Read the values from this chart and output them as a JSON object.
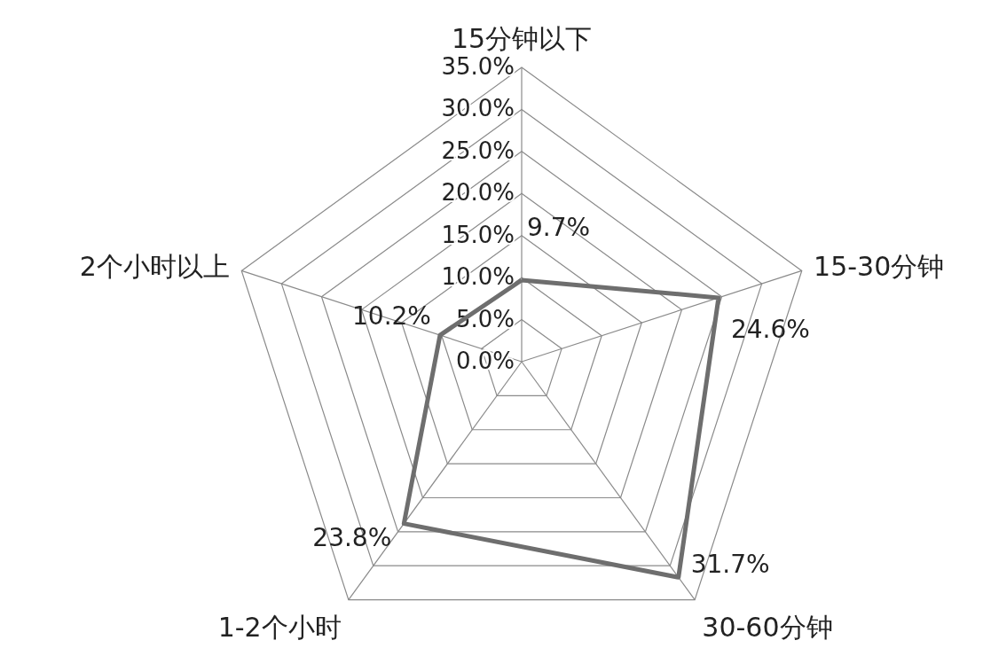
{
  "chart_data": {
    "type": "radar",
    "categories": [
      "15分钟以下",
      "15-30分钟",
      "30-60分钟",
      "1-2个小时",
      "2个小时以上"
    ],
    "series": [
      {
        "color": "#6e6e6e",
        "values": [
          9.7,
          24.6,
          31.7,
          23.8,
          10.2
        ],
        "value_labels": [
          "9.7%",
          "24.6%",
          "31.7%",
          "23.8%",
          "10.2%"
        ]
      }
    ],
    "ylim": [
      0,
      35
    ],
    "yticks": [
      {
        "value": 0,
        "label": "0.0%"
      },
      {
        "value": 5,
        "label": "5.0%"
      },
      {
        "value": 10,
        "label": "10.0%"
      },
      {
        "value": 15,
        "label": "15.0%"
      },
      {
        "value": 20,
        "label": "20.0%"
      },
      {
        "value": 25,
        "label": "25.0%"
      },
      {
        "value": 30,
        "label": "30.0%"
      },
      {
        "value": 35,
        "label": "35.0%"
      }
    ],
    "grid": true,
    "marker": "none",
    "line_style": "solid"
  }
}
